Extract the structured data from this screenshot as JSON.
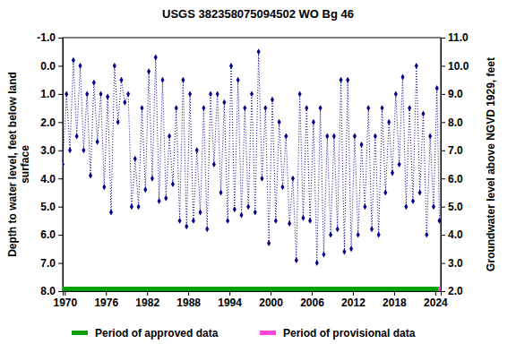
{
  "chart_data": {
    "type": "line",
    "title": "USGS 382358075094502 WO Bg  46",
    "ylabel": [
      "Depth to water level, feet below land",
      "surface"
    ],
    "y2label": "Groundwater level above NGVD 1929, feet",
    "xlim": [
      1969.7,
      2024.8
    ],
    "xticks": [
      1970,
      1976,
      1982,
      1988,
      1994,
      2000,
      2006,
      2012,
      2018,
      2024
    ],
    "ylim": [
      8.0,
      -1.0
    ],
    "yticks": [
      {
        "value": -1,
        "label": "-1.0"
      },
      {
        "value": 0,
        "label": "0.0"
      },
      {
        "value": 1,
        "label": "1.0"
      },
      {
        "value": 2,
        "label": "2.0"
      },
      {
        "value": 3,
        "label": "3.0"
      },
      {
        "value": 4,
        "label": "4.0"
      },
      {
        "value": 5,
        "label": "5.0"
      },
      {
        "value": 6,
        "label": "6.0"
      },
      {
        "value": 7,
        "label": "7.0"
      },
      {
        "value": 8,
        "label": "8.0"
      }
    ],
    "y2lim": [
      2.0,
      11.0
    ],
    "y2ticks": [
      {
        "value": 2,
        "label": "2.0"
      },
      {
        "value": 3,
        "label": "3.0"
      },
      {
        "value": 4,
        "label": "4.0"
      },
      {
        "value": 5,
        "label": "5.0"
      },
      {
        "value": 6,
        "label": "6.0"
      },
      {
        "value": 7,
        "label": "7.0"
      },
      {
        "value": 8,
        "label": "8.0"
      },
      {
        "value": 9,
        "label": "9.0"
      },
      {
        "value": 10,
        "label": "10.0"
      },
      {
        "value": 11,
        "label": "11.0"
      }
    ],
    "grid": false,
    "series": [
      {
        "color": "#00008b",
        "marker": "diamond",
        "line_style": "dotted",
        "x": [
          1969.7,
          1970.25,
          1970.75,
          1971.25,
          1971.75,
          1972.25,
          1972.75,
          1973.25,
          1973.75,
          1974.25,
          1974.75,
          1975.25,
          1975.75,
          1976.25,
          1976.75,
          1977.25,
          1977.75,
          1978.25,
          1978.75,
          1979.25,
          1979.75,
          1980.25,
          1980.75,
          1981.25,
          1981.75,
          1982.25,
          1982.75,
          1983.25,
          1983.75,
          1984.25,
          1984.75,
          1985.25,
          1985.75,
          1986.25,
          1986.75,
          1987.25,
          1987.75,
          1988.25,
          1988.75,
          1989.25,
          1989.75,
          1990.25,
          1990.75,
          1991.25,
          1991.75,
          1992.25,
          1992.75,
          1993.25,
          1993.75,
          1994.25,
          1994.75,
          1995.25,
          1995.75,
          1996.25,
          1996.75,
          1997.25,
          1997.75,
          1998.25,
          1998.75,
          1999.25,
          1999.75,
          2000.25,
          2000.75,
          2001.25,
          2001.75,
          2002.25,
          2002.75,
          2003.25,
          2003.75,
          2004.25,
          2004.75,
          2005.25,
          2005.75,
          2006.25,
          2006.75,
          2007.25,
          2007.75,
          2008.25,
          2008.75,
          2009.25,
          2009.75,
          2010.25,
          2010.75,
          2011.25,
          2011.75,
          2012.25,
          2012.75,
          2013.25,
          2013.75,
          2014.25,
          2014.75,
          2015.25,
          2015.75,
          2016.25,
          2016.75,
          2017.25,
          2017.75,
          2018.25,
          2018.75,
          2019.25,
          2019.75,
          2020.25,
          2020.75,
          2021.25,
          2021.75,
          2022.25,
          2022.75,
          2023.25,
          2023.75,
          2024.25,
          2024.6
        ],
        "values": [
          3.5,
          1.0,
          3.0,
          -0.2,
          2.5,
          0.0,
          3.0,
          1.0,
          3.9,
          0.6,
          2.7,
          1.0,
          4.3,
          1.1,
          5.2,
          0.0,
          2.0,
          0.5,
          1.3,
          1.0,
          5.0,
          3.3,
          5.0,
          1.5,
          4.4,
          0.2,
          4.0,
          -0.3,
          4.8,
          0.5,
          4.7,
          2.5,
          4.2,
          1.5,
          5.5,
          0.5,
          5.7,
          1.0,
          5.5,
          3.0,
          5.2,
          1.5,
          5.8,
          1.0,
          3.5,
          1.0,
          4.5,
          1.3,
          5.5,
          0.0,
          5.1,
          0.5,
          5.3,
          1.5,
          5.0,
          1.0,
          5.2,
          -0.5,
          4.0,
          1.5,
          6.3,
          1.2,
          5.5,
          2.0,
          4.3,
          2.5,
          5.6,
          4.0,
          6.9,
          1.0,
          5.4,
          1.5,
          5.5,
          2.0,
          7.0,
          1.5,
          6.7,
          2.5,
          6.0,
          2.5,
          5.8,
          0.5,
          6.6,
          0.5,
          6.5,
          2.5,
          6.0,
          2.8,
          5.0,
          1.5,
          5.8,
          2.5,
          6.0,
          1.5,
          4.5,
          2.0,
          3.8,
          1.0,
          3.5,
          0.4,
          5.0,
          1.5,
          4.8,
          0.0,
          4.5,
          1.7,
          6.0,
          2.5,
          5.0,
          0.8,
          5.5
        ]
      }
    ],
    "periods": [
      {
        "name": "Period of approved data",
        "color": "#00a000",
        "x": [
          1969.7,
          2024.5
        ]
      },
      {
        "name": "Period of provisional data",
        "color": "#ff44dd",
        "x": [
          2024.5,
          2024.8
        ]
      }
    ]
  }
}
